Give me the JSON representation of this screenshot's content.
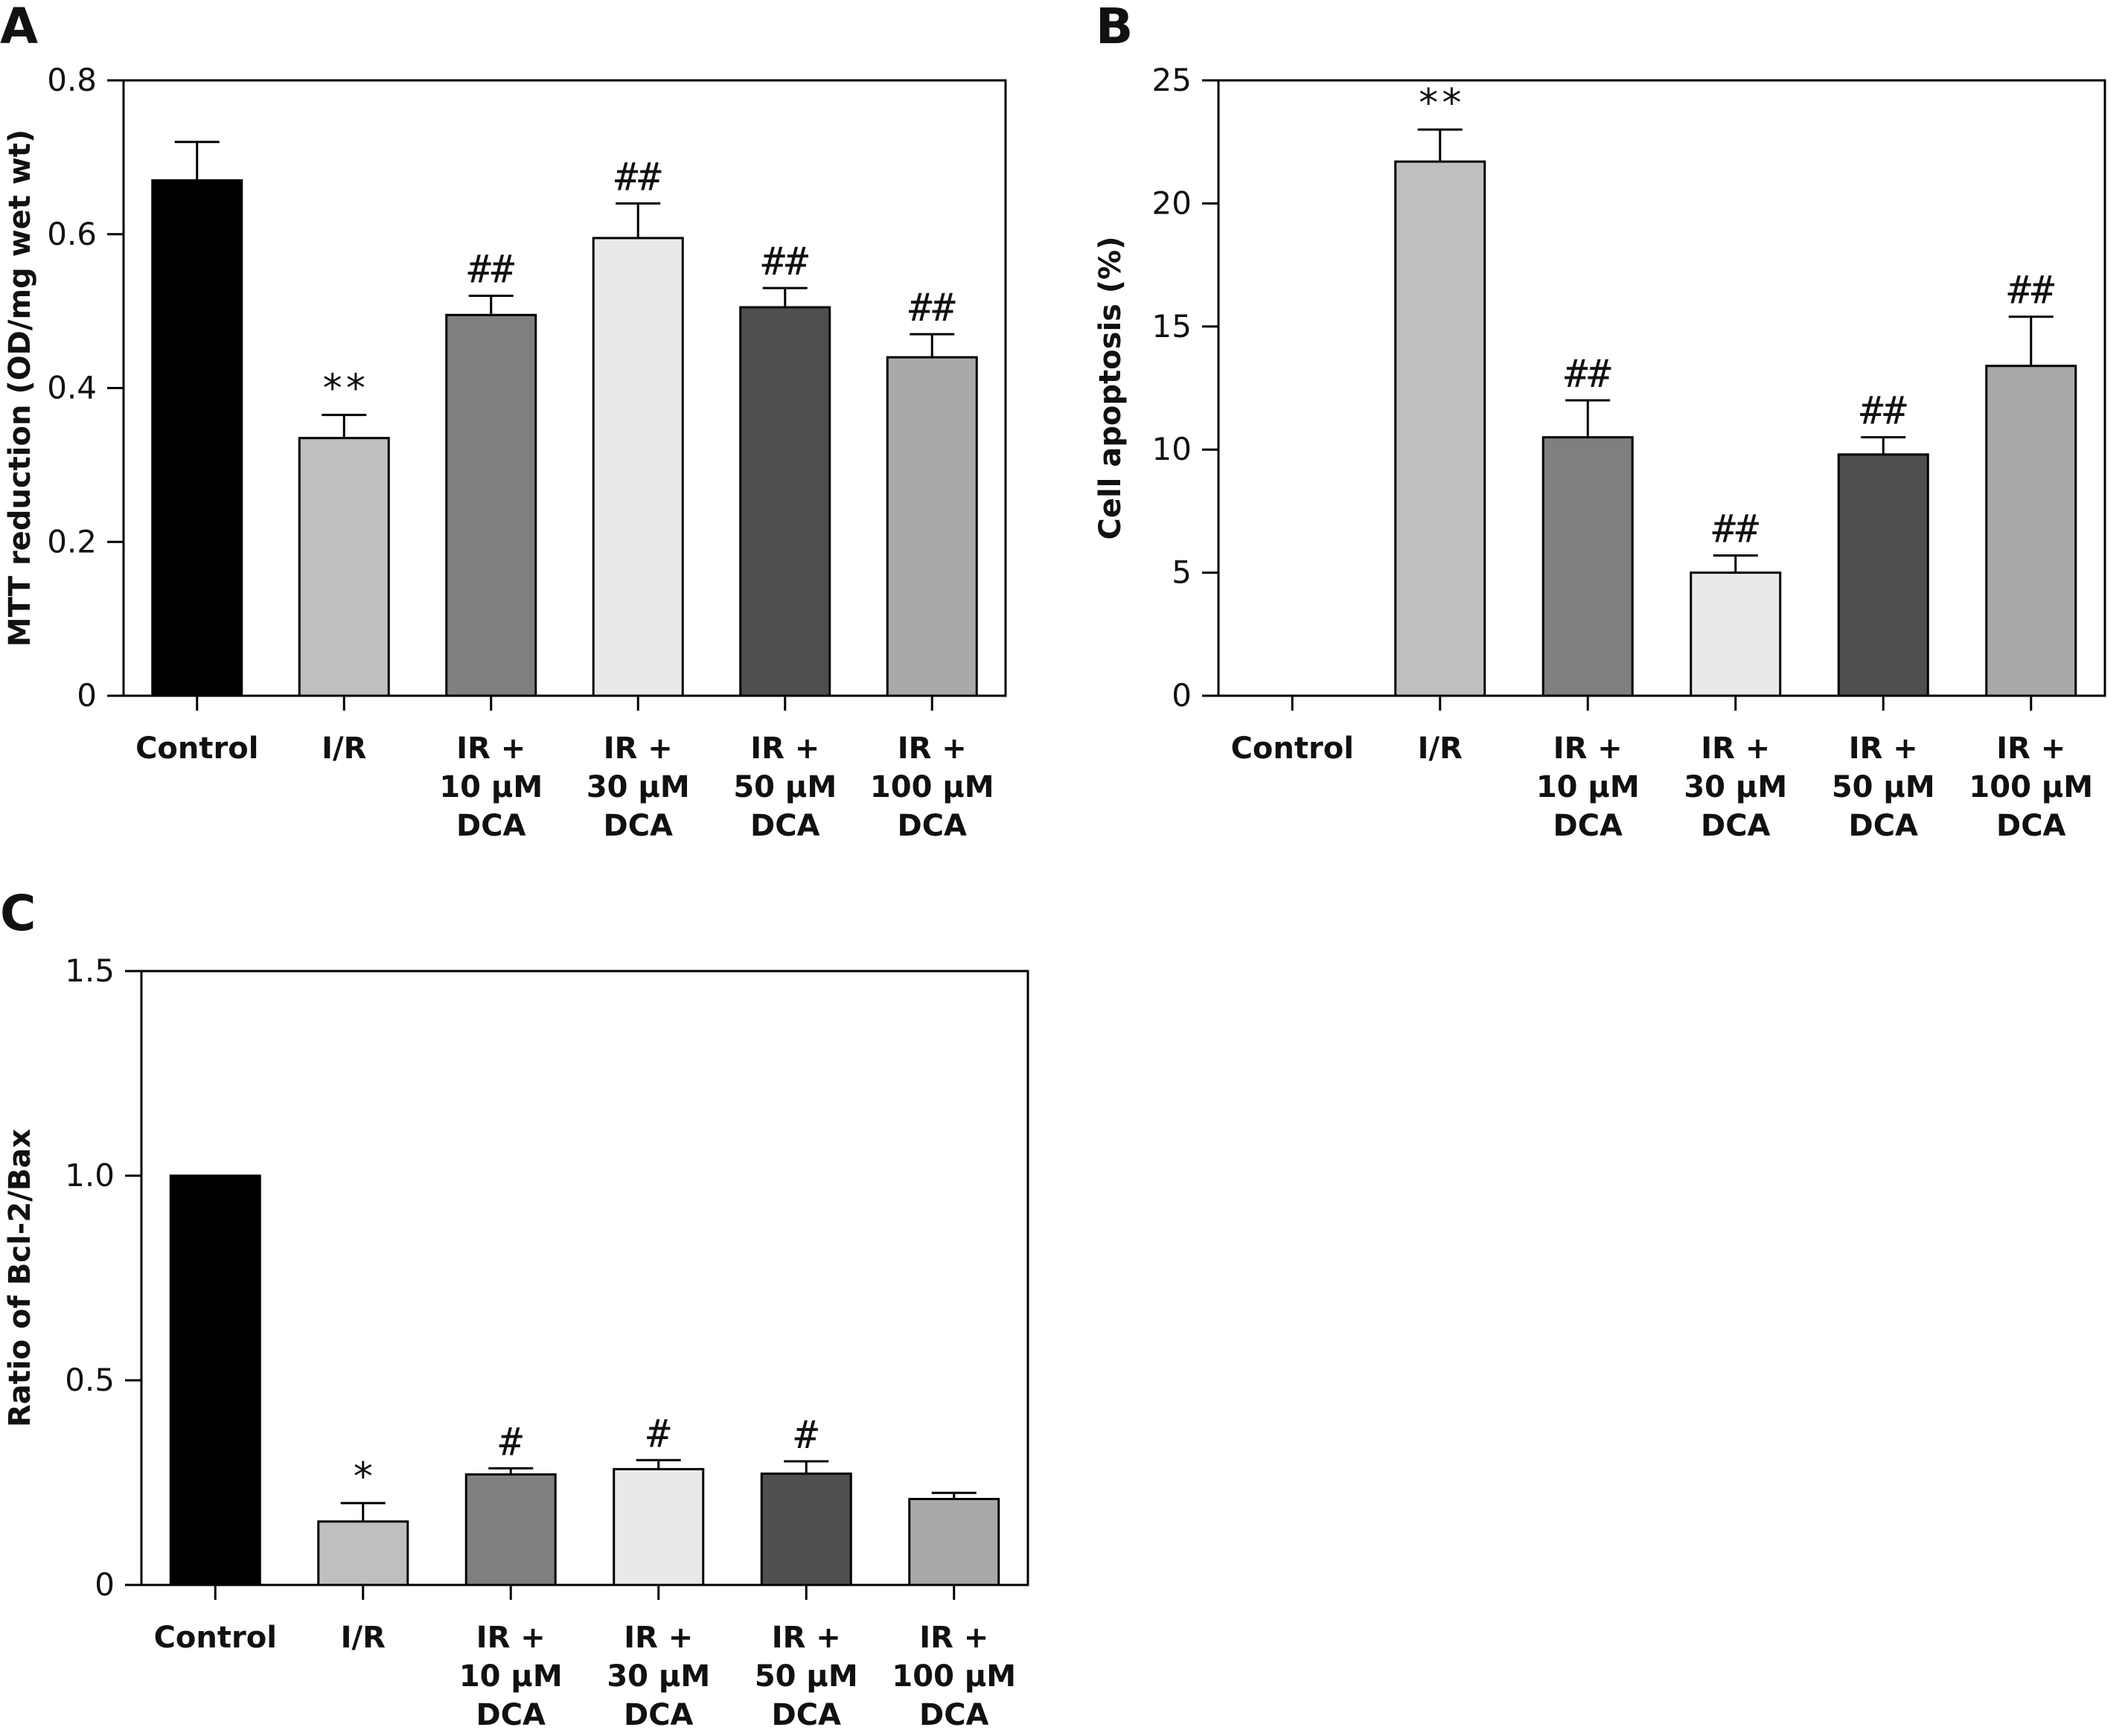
{
  "chart_data": [
    {
      "type": "bar",
      "panel": "A",
      "ylabel": "MTT reduction (OD/mg wet wt)",
      "ylim": [
        0,
        0.8
      ],
      "yticks": [
        "0",
        "0.2",
        "0.4",
        "0.6",
        "0.8"
      ],
      "ytick_values": [
        0,
        0.2,
        0.4,
        0.6,
        0.8
      ],
      "categories": [
        [
          "Control"
        ],
        [
          "I/R"
        ],
        [
          "IR +",
          "10 μM",
          "DCA"
        ],
        [
          "IR +",
          "30 μM",
          "DCA"
        ],
        [
          "IR +",
          "50 μM",
          "DCA"
        ],
        [
          "IR +",
          "100 μM",
          "DCA"
        ]
      ],
      "values": [
        0.67,
        0.335,
        0.495,
        0.595,
        0.505,
        0.44
      ],
      "errors": [
        0.05,
        0.03,
        0.025,
        0.045,
        0.025,
        0.03
      ],
      "significance": [
        "",
        "**",
        "##",
        "##",
        "##",
        "##"
      ],
      "colors": [
        "#000000",
        "#bfbfbf",
        "#7f7f7f",
        "#e9e9e9",
        "#4f4f4f",
        "#a9a9a9"
      ],
      "grid": false
    },
    {
      "type": "bar",
      "panel": "B",
      "ylabel": "Cell apoptosis (%)",
      "ylim": [
        0,
        25
      ],
      "yticks": [
        "0",
        "5",
        "10",
        "15",
        "20",
        "25"
      ],
      "ytick_values": [
        0,
        5,
        10,
        15,
        20,
        25
      ],
      "categories": [
        [
          "Control"
        ],
        [
          "I/R"
        ],
        [
          "IR +",
          "10 μM",
          "DCA"
        ],
        [
          "IR +",
          "30 μM",
          "DCA"
        ],
        [
          "IR +",
          "50 μM",
          "DCA"
        ],
        [
          "IR +",
          "100 μM",
          "DCA"
        ]
      ],
      "values": [
        0,
        21.7,
        10.5,
        5.0,
        9.8,
        13.4
      ],
      "errors": [
        0,
        1.3,
        1.5,
        0.7,
        0.7,
        2.0
      ],
      "significance": [
        "",
        "**",
        "##",
        "##",
        "##",
        "##"
      ],
      "colors": [
        "#000000",
        "#bfbfbf",
        "#7f7f7f",
        "#e9e9e9",
        "#4f4f4f",
        "#a9a9a9"
      ],
      "grid": false
    },
    {
      "type": "bar",
      "panel": "C",
      "ylabel": "Ratio of Bcl-2/Bax",
      "ylim": [
        0,
        1.5
      ],
      "yticks": [
        "0",
        "0.5",
        "1.0",
        "1.5"
      ],
      "ytick_values": [
        0,
        0.5,
        1.0,
        1.5
      ],
      "categories": [
        [
          "Control"
        ],
        [
          "I/R"
        ],
        [
          "IR +",
          "10 μM",
          "DCA"
        ],
        [
          "IR +",
          "30 μM",
          "DCA"
        ],
        [
          "IR +",
          "50 μM",
          "DCA"
        ],
        [
          "IR +",
          "100 μM",
          "DCA"
        ]
      ],
      "values": [
        1.0,
        0.155,
        0.27,
        0.283,
        0.272,
        0.21
      ],
      "errors": [
        0,
        0.045,
        0.015,
        0.022,
        0.03,
        0.015
      ],
      "significance": [
        "",
        "*",
        "#",
        "#",
        "#",
        ""
      ],
      "colors": [
        "#000000",
        "#bfbfbf",
        "#7f7f7f",
        "#e9e9e9",
        "#4f4f4f",
        "#a9a9a9"
      ],
      "grid": false
    }
  ]
}
